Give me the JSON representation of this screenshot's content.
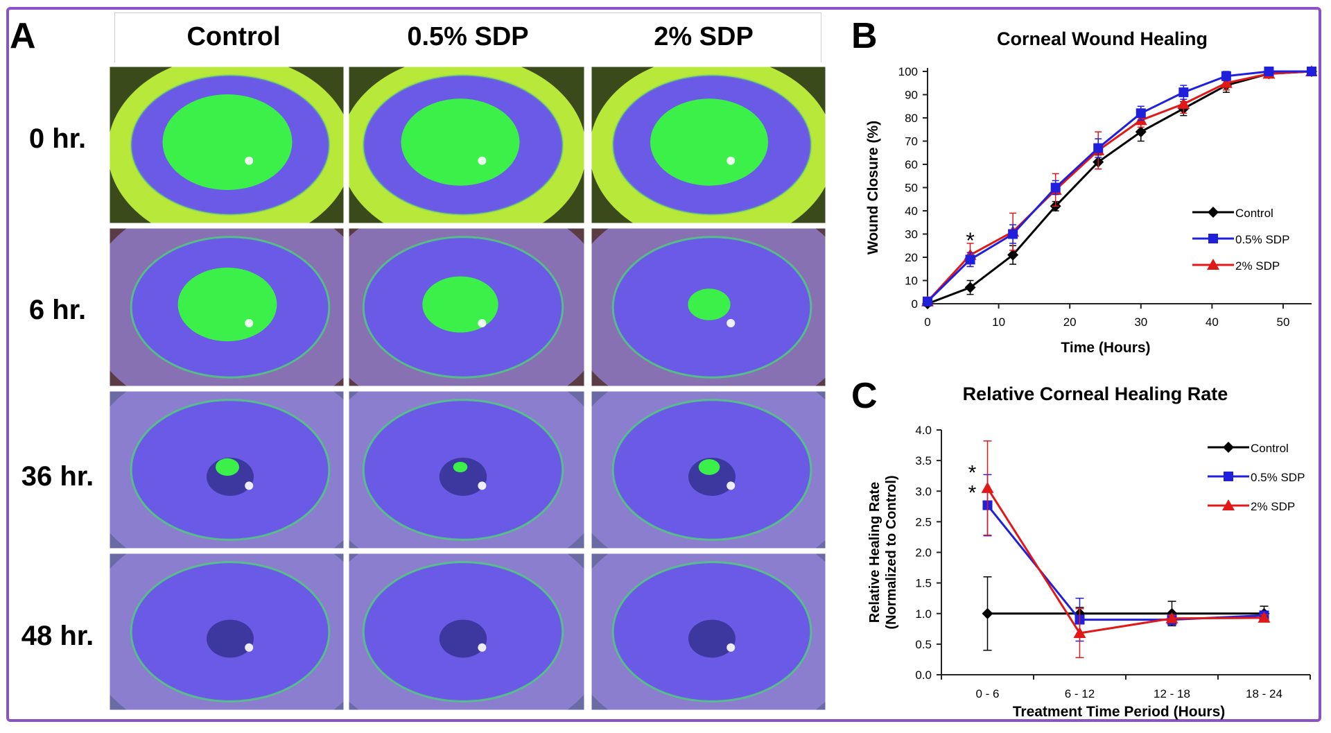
{
  "panels": {
    "a": {
      "letter": "A"
    },
    "b": {
      "letter": "B"
    },
    "c": {
      "letter": "C"
    }
  },
  "photo_grid": {
    "columns": [
      "Control",
      "0.5% SDP",
      "2% SDP"
    ],
    "rows": [
      "0 hr.",
      "6 hr.",
      "36 hr.",
      "48 hr."
    ],
    "stain_fraction": [
      [
        0.55,
        0.5,
        0.5
      ],
      [
        0.42,
        0.32,
        0.18
      ],
      [
        0.1,
        0.06,
        0.09
      ],
      [
        0.0,
        0.0,
        0.0
      ]
    ]
  },
  "colors": {
    "frame": "#8a52c4",
    "control": "#000000",
    "sdp05": "#1f1fdc",
    "sdp2": "#e01818",
    "stain": "#3cf04a",
    "iris": "#6a5ae6"
  },
  "chart_data": [
    {
      "type": "line",
      "title": "Corneal Wound Healing",
      "xlabel": "Time (Hours)",
      "ylabel": "Wound Closure (%)",
      "xlim": [
        0,
        54
      ],
      "ylim": [
        0,
        100
      ],
      "xticks": [
        0,
        10,
        20,
        30,
        40,
        50
      ],
      "yticks": [
        0,
        10,
        20,
        30,
        40,
        50,
        60,
        70,
        80,
        90,
        100
      ],
      "legend_position": "right",
      "annotations": [
        {
          "text": "*",
          "x": 6,
          "y": 28
        }
      ],
      "series": [
        {
          "name": "Control",
          "color": "#000000",
          "marker": "diamond",
          "x": [
            0,
            6,
            12,
            18,
            24,
            30,
            36,
            42,
            48,
            54
          ],
          "y": [
            0,
            7,
            21,
            42,
            61,
            74,
            84,
            94,
            99,
            100
          ],
          "err": [
            1,
            3,
            4,
            2,
            3,
            4,
            3,
            3,
            1,
            1
          ]
        },
        {
          "name": "0.5% SDP",
          "color": "#1f1fdc",
          "marker": "square",
          "x": [
            0,
            6,
            12,
            18,
            24,
            30,
            36,
            42,
            48,
            54
          ],
          "y": [
            1,
            19,
            30,
            50,
            67,
            82,
            91,
            98,
            100,
            100
          ],
          "err": [
            1,
            3,
            4,
            3,
            4,
            3,
            3,
            2,
            1,
            1
          ]
        },
        {
          "name": "2% SDP",
          "color": "#e01818",
          "marker": "triangle",
          "x": [
            0,
            6,
            12,
            18,
            24,
            30,
            36,
            42,
            48,
            54
          ],
          "y": [
            1,
            21,
            31,
            49,
            66,
            79,
            86,
            95,
            99,
            100
          ],
          "err": [
            1,
            5,
            8,
            7,
            8,
            3,
            4,
            3,
            1,
            1
          ]
        }
      ]
    },
    {
      "type": "line",
      "title": "Relative Corneal Healing Rate",
      "xlabel": "Treatment Time Period (Hours)",
      "ylabel": "Relative Healing Rate",
      "ylabel2": "(Normalized to Control)",
      "categories": [
        "0 - 6",
        "6 - 12",
        "12 - 18",
        "18 - 24"
      ],
      "ylim": [
        0,
        4
      ],
      "yticks": [
        "0.0",
        "0.5",
        "1.0",
        "1.5",
        "2.0",
        "2.5",
        "3.0",
        "3.5",
        "4.0"
      ],
      "legend_position": "top-right",
      "annotations": [
        {
          "text": "*",
          "category": 0,
          "y": 3.35
        },
        {
          "text": "*",
          "category": 0,
          "y": 3.02
        }
      ],
      "series": [
        {
          "name": "Control",
          "color": "#000000",
          "marker": "diamond",
          "values": [
            1.0,
            1.0,
            1.0,
            1.0
          ],
          "err": [
            0.6,
            0.1,
            0.2,
            0.12
          ]
        },
        {
          "name": "0.5% SDP",
          "color": "#1f1fdc",
          "marker": "square",
          "values": [
            2.77,
            0.9,
            0.9,
            0.97
          ],
          "err": [
            0.5,
            0.35,
            0.08,
            0.07
          ]
        },
        {
          "name": "2% SDP",
          "color": "#e01818",
          "marker": "triangle",
          "values": [
            3.05,
            0.68,
            0.92,
            0.93
          ],
          "err": [
            0.77,
            0.4,
            0.05,
            0.05
          ]
        }
      ]
    }
  ]
}
